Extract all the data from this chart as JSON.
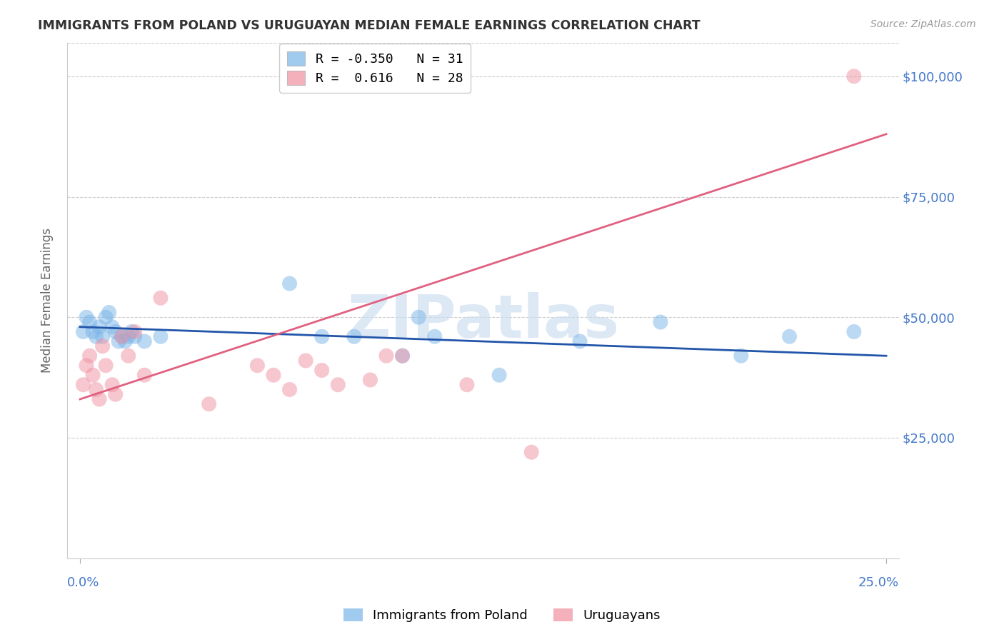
{
  "title": "IMMIGRANTS FROM POLAND VS URUGUAYAN MEDIAN FEMALE EARNINGS CORRELATION CHART",
  "source": "Source: ZipAtlas.com",
  "ylabel": "Median Female Earnings",
  "yticks": [
    0,
    25000,
    50000,
    75000,
    100000
  ],
  "ytick_labels": [
    "",
    "$25,000",
    "$50,000",
    "$75,000",
    "$100,000"
  ],
  "xlim": [
    0.0,
    0.25
  ],
  "ylim": [
    0,
    107000
  ],
  "watermark": "ZIPatlas",
  "poland_color": "#7ab5e8",
  "uruguayan_color": "#f090a0",
  "poland_line_color": "#2255aa",
  "uruguayan_line_color": "#e06080",
  "poland_intercept": 48000,
  "poland_slope": -24000,
  "uruguayan_intercept": 33000,
  "uruguayan_slope": 220000,
  "poland_x": [
    0.001,
    0.002,
    0.003,
    0.004,
    0.005,
    0.006,
    0.007,
    0.008,
    0.009,
    0.01,
    0.011,
    0.012,
    0.013,
    0.014,
    0.015,
    0.016,
    0.017,
    0.02,
    0.025,
    0.065,
    0.075,
    0.085,
    0.1,
    0.105,
    0.11,
    0.13,
    0.155,
    0.18,
    0.205,
    0.22,
    0.24
  ],
  "poland_y": [
    47000,
    50000,
    49000,
    47000,
    46000,
    48000,
    46000,
    50000,
    51000,
    48000,
    47000,
    45000,
    46000,
    45000,
    46000,
    47000,
    46000,
    45000,
    46000,
    57000,
    46000,
    46000,
    42000,
    50000,
    46000,
    38000,
    45000,
    49000,
    42000,
    46000,
    47000
  ],
  "uruguayan_x": [
    0.001,
    0.002,
    0.003,
    0.004,
    0.005,
    0.006,
    0.007,
    0.008,
    0.01,
    0.011,
    0.013,
    0.015,
    0.017,
    0.02,
    0.025,
    0.04,
    0.055,
    0.06,
    0.065,
    0.07,
    0.075,
    0.08,
    0.09,
    0.095,
    0.1,
    0.12,
    0.14,
    0.24
  ],
  "uruguayan_y": [
    36000,
    40000,
    42000,
    38000,
    35000,
    33000,
    44000,
    40000,
    36000,
    34000,
    46000,
    42000,
    47000,
    38000,
    54000,
    32000,
    40000,
    38000,
    35000,
    41000,
    39000,
    36000,
    37000,
    42000,
    42000,
    36000,
    22000,
    100000
  ],
  "legend_line1": "R = -0.350   N = 31",
  "legend_line2": "R =  0.616   N = 28"
}
